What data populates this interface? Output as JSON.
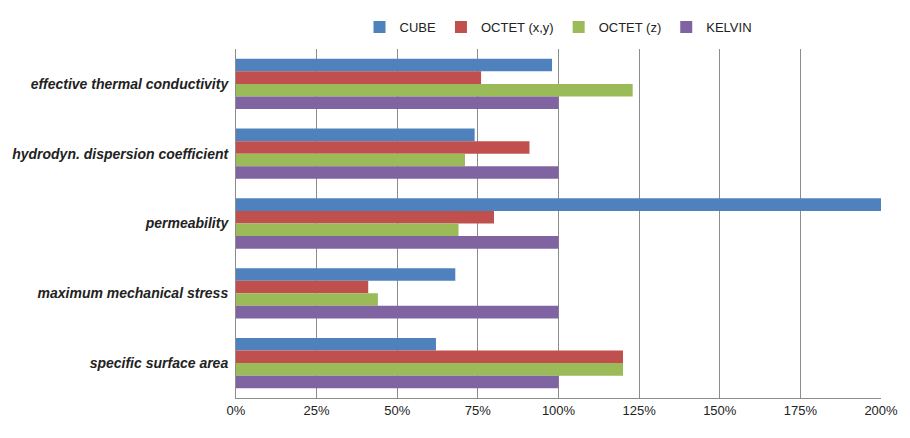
{
  "chart_data": {
    "type": "bar",
    "orientation": "horizontal",
    "categories": [
      "effective thermal conductivity",
      "hydrodyn. dispersion coefficient",
      "permeability",
      "maximum mechanical stress",
      "specific surface area"
    ],
    "series": [
      {
        "name": "CUBE",
        "color": "#4f81bd",
        "values": [
          98,
          74,
          200,
          68,
          62
        ]
      },
      {
        "name": "OCTET (x,y)",
        "color": "#c0504d",
        "values": [
          76,
          91,
          80,
          41,
          120
        ]
      },
      {
        "name": "OCTET (z)",
        "color": "#9bbb59",
        "values": [
          123,
          71,
          69,
          44,
          120
        ]
      },
      {
        "name": "KELVIN",
        "color": "#8064a2",
        "values": [
          100,
          100,
          100,
          100,
          100
        ]
      }
    ],
    "xlim": [
      0,
      200
    ],
    "xticks": [
      {
        "value": 0,
        "label": "0%"
      },
      {
        "value": 25,
        "label": "25%"
      },
      {
        "value": 50,
        "label": "50%"
      },
      {
        "value": 75,
        "label": "75%"
      },
      {
        "value": 100,
        "label": "100%"
      },
      {
        "value": 125,
        "label": "125%"
      },
      {
        "value": 150,
        "label": "150%"
      },
      {
        "value": 175,
        "label": "175%"
      },
      {
        "value": 200,
        "label": "200%"
      }
    ],
    "grid": true,
    "legend": "top"
  }
}
